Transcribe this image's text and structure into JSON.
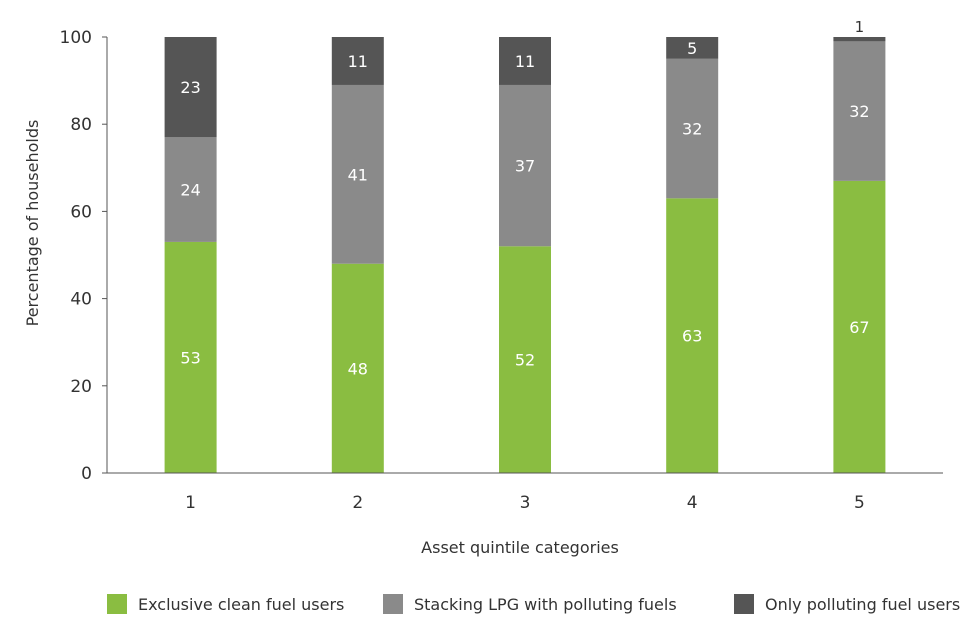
{
  "chart_data": {
    "type": "bar",
    "stacked": true,
    "xlabel": "Asset quintile categories",
    "ylabel": "Percentage of households",
    "ylim": [
      0,
      100
    ],
    "yticks": [
      0,
      20,
      40,
      60,
      80,
      100
    ],
    "grid": false,
    "categories": [
      "1",
      "2",
      "3",
      "4",
      "5"
    ],
    "series": [
      {
        "name": "Exclusive clean fuel users",
        "color": "#8abd41",
        "values": [
          53,
          48,
          52,
          63,
          67
        ]
      },
      {
        "name": "Stacking LPG with polluting fuels",
        "color": "#8a8a8a",
        "values": [
          24,
          41,
          37,
          32,
          32
        ]
      },
      {
        "name": "Only polluting fuel users",
        "color": "#555555",
        "values": [
          23,
          11,
          11,
          5,
          1
        ]
      }
    ],
    "data_labels": [
      [
        "53",
        "24",
        "23"
      ],
      [
        "48",
        "41",
        "11"
      ],
      [
        "52",
        "37",
        "11"
      ],
      [
        "63",
        "32",
        "5"
      ],
      [
        "67",
        "32",
        "1"
      ]
    ],
    "legend_position": "bottom"
  }
}
